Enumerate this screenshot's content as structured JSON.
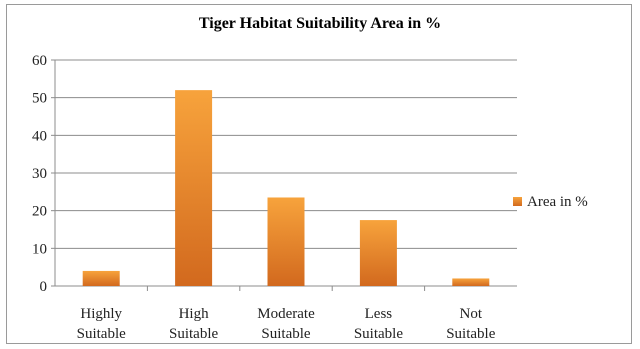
{
  "chart_data": {
    "type": "bar",
    "title": "Tiger Habitat Suitability Area in %",
    "categories": [
      [
        "Highly",
        "Suitable"
      ],
      [
        "High",
        "Suitable"
      ],
      [
        "Moderate",
        "Suitable"
      ],
      [
        "Less",
        "Suitable"
      ],
      [
        "Not",
        "Suitable"
      ]
    ],
    "series": [
      {
        "name": "Area in %",
        "values": [
          4,
          52,
          23.5,
          17.5,
          2
        ]
      }
    ],
    "ylim": [
      0,
      60
    ],
    "yticks": [
      "0",
      "10",
      "20",
      "30",
      "40",
      "50",
      "60"
    ],
    "ytick_values": [
      0,
      10,
      20,
      30,
      40,
      50,
      60
    ],
    "grid": true,
    "legend": "right",
    "colors": {
      "bar_top": "#F7A33C",
      "bar_bottom": "#D2691E"
    }
  }
}
